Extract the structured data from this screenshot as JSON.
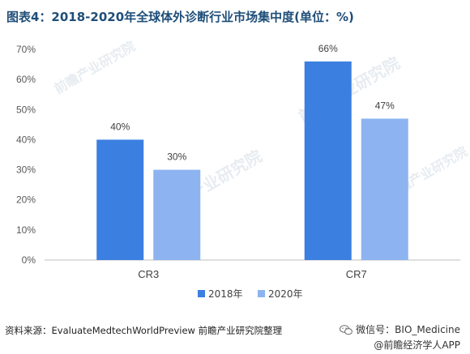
{
  "title": "图表4：2018-2020年全球体外诊断行业市场集中度(单位：%)",
  "watermark": "前瞻产业研究院",
  "chart_data": {
    "type": "bar",
    "categories": [
      "CR3",
      "CR7"
    ],
    "series": [
      {
        "name": "2018年",
        "values": [
          40,
          66
        ],
        "color": "#3b7fe0"
      },
      {
        "name": "2020年",
        "values": [
          30,
          47
        ],
        "color": "#8db4f0"
      }
    ],
    "ylim": [
      0,
      70
    ],
    "yticks": [
      0,
      10,
      20,
      30,
      40,
      50,
      60,
      70
    ],
    "tick_suffix": "%",
    "data_label_suffix": "%",
    "legend_position": "bottom",
    "grid": false
  },
  "footer": {
    "source": "资料来源：EvaluateMedtechWorldPreview 前瞻产业研究院整理",
    "wechat": "微信号：BIO_Medicine",
    "app": "@前瞻经济学人APP"
  }
}
